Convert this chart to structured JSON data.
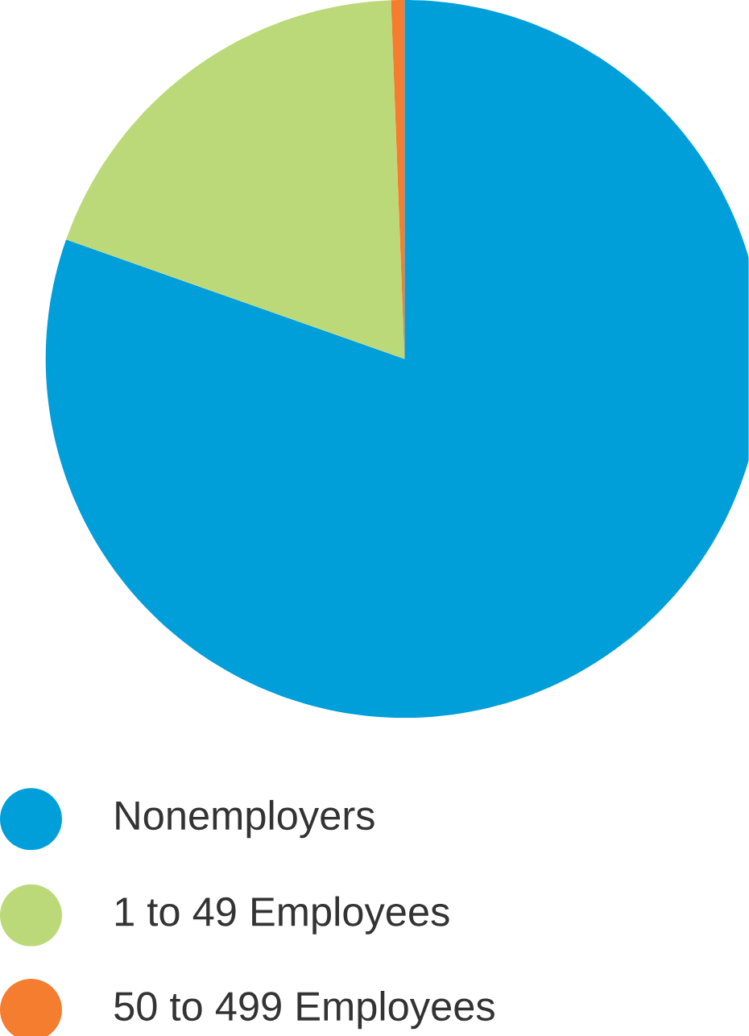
{
  "chart_data": {
    "type": "pie",
    "categories": [
      "Nonemployers",
      "1 to 49 Employees",
      "50 to 499 Employees"
    ],
    "values": [
      80.4,
      19.0,
      0.6
    ],
    "colors": [
      "#009fda",
      "#bcd97a",
      "#f47d30"
    ],
    "legend": "bottom"
  }
}
